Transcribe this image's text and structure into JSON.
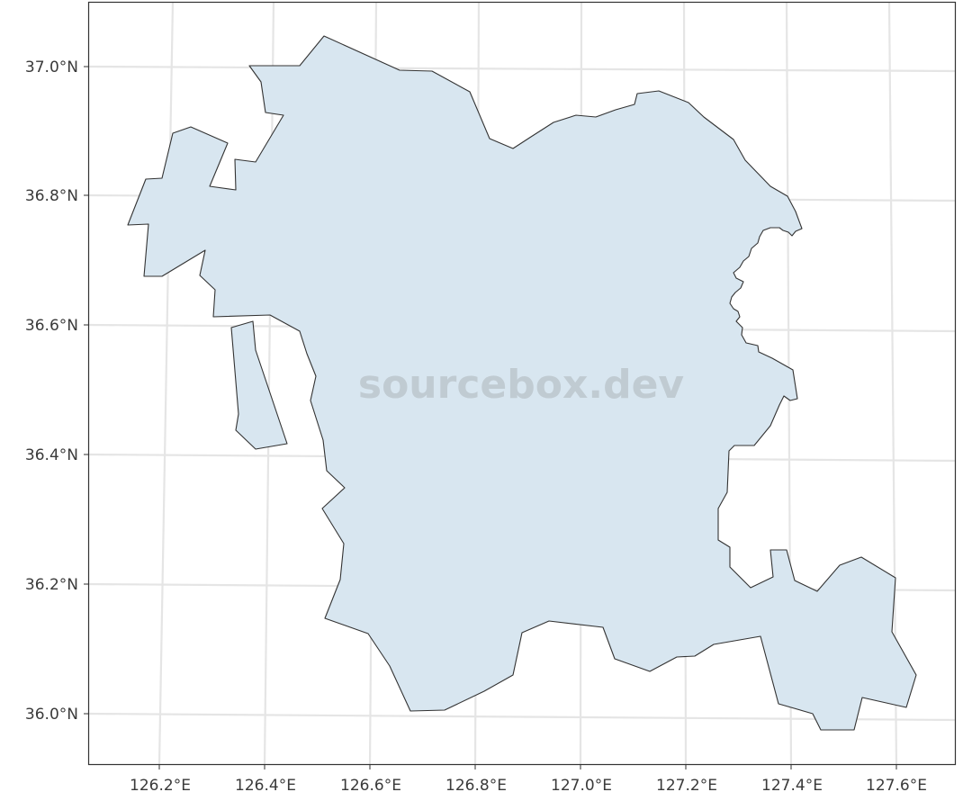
{
  "map": {
    "watermark": "sourcebox.dev",
    "colors": {
      "region_fill": "#d8e6f0",
      "region_stroke": "#333333",
      "grid": "#e5e5e5",
      "frame": "#333333"
    },
    "x_ticks": [
      {
        "value": 126.2,
        "label": "126.2°E"
      },
      {
        "value": 126.4,
        "label": "126.4°E"
      },
      {
        "value": 126.6,
        "label": "126.6°E"
      },
      {
        "value": 126.8,
        "label": "126.8°E"
      },
      {
        "value": 127.0,
        "label": "127.0°E"
      },
      {
        "value": 127.2,
        "label": "127.2°E"
      },
      {
        "value": 127.4,
        "label": "127.4°E"
      },
      {
        "value": 127.6,
        "label": "127.6°E"
      }
    ],
    "y_ticks": [
      {
        "value": 37.0,
        "label": "37.0°N"
      },
      {
        "value": 36.8,
        "label": "36.8°N"
      },
      {
        "value": 36.6,
        "label": "36.6°N"
      },
      {
        "value": 36.4,
        "label": "36.4°N"
      },
      {
        "value": 36.2,
        "label": "36.2°N"
      },
      {
        "value": 36.0,
        "label": "36.0°N"
      }
    ]
  }
}
